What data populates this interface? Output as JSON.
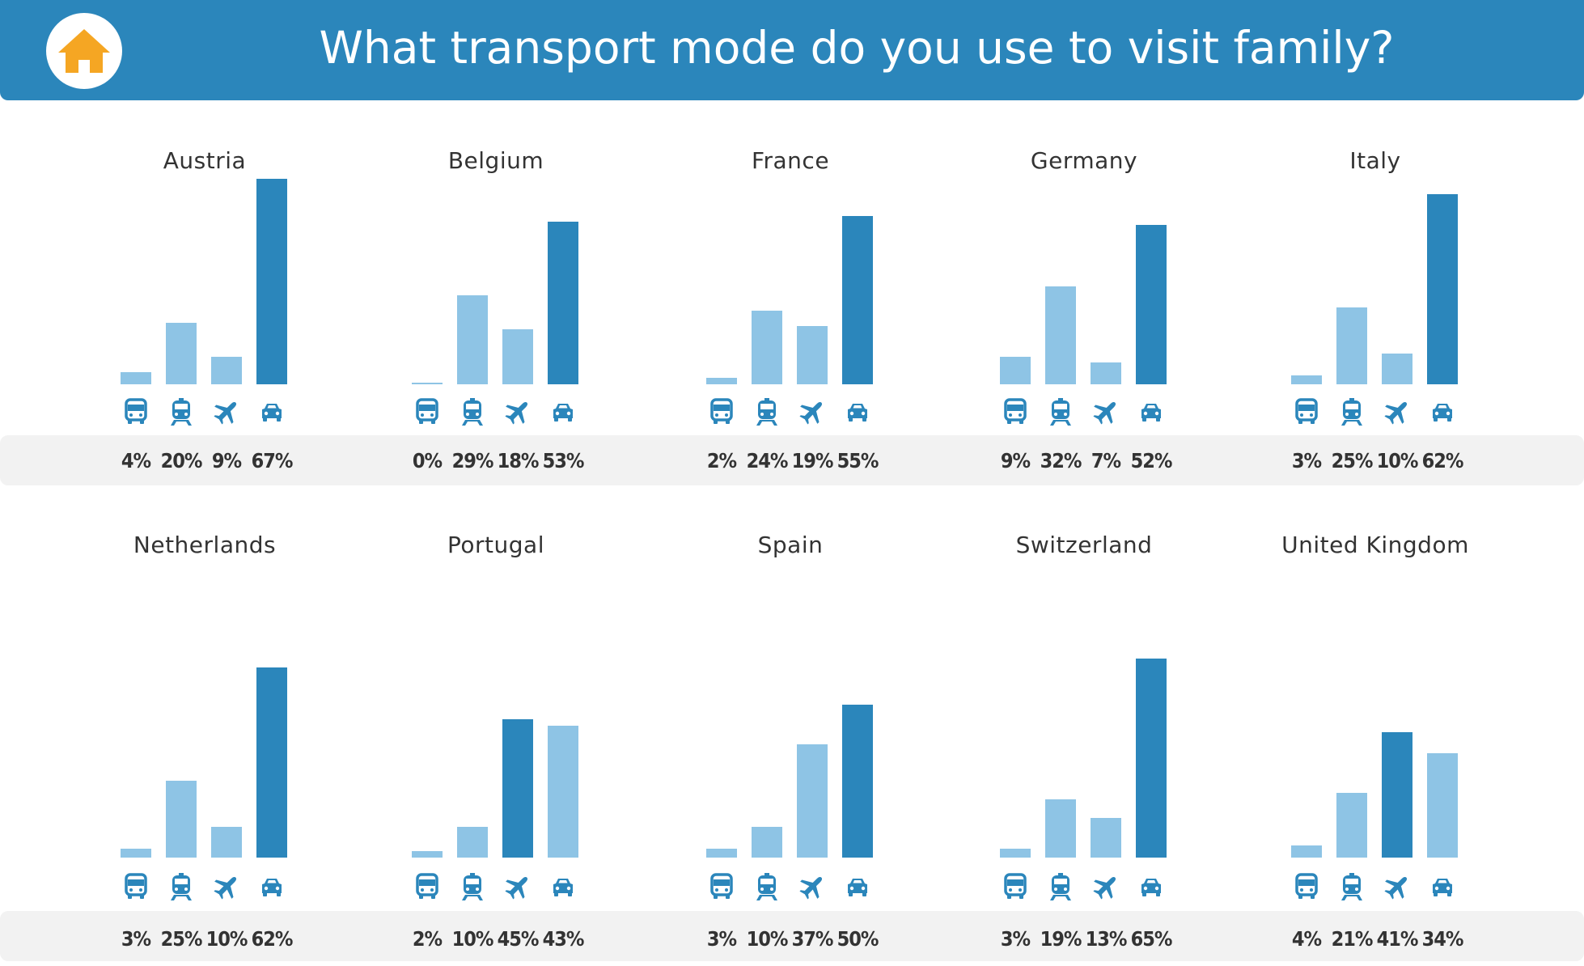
{
  "header": {
    "title": "What transport mode do you use to visit family?",
    "icon": "home-icon"
  },
  "colors": {
    "header": "#2b86bb",
    "bar_light": "#8ec4e5",
    "bar_dark": "#2b86bb",
    "icon": "#2b86bb",
    "home_icon": "#f5a623",
    "band": "#f2f2f2"
  },
  "chart_data": {
    "type": "bar",
    "title": "What transport mode do you use to visit family?",
    "categories": [
      "bus-icon",
      "train-icon",
      "plane-icon",
      "car-icon"
    ],
    "value_unit": "%",
    "charts": [
      {
        "country": "Austria",
        "values": [
          4,
          20,
          9,
          67
        ],
        "labels": [
          "4%",
          "20%",
          "9%",
          "67%"
        ]
      },
      {
        "country": "Belgium",
        "values": [
          0,
          29,
          18,
          53
        ],
        "labels": [
          "0%",
          "29%",
          "18%",
          "53%"
        ]
      },
      {
        "country": "France",
        "values": [
          2,
          24,
          19,
          55
        ],
        "labels": [
          "2%",
          "24%",
          "19%",
          "55%"
        ]
      },
      {
        "country": "Germany",
        "values": [
          9,
          32,
          7,
          52
        ],
        "labels": [
          "9%",
          "32%",
          "7%",
          "52%"
        ]
      },
      {
        "country": "Italy",
        "values": [
          3,
          25,
          10,
          62
        ],
        "labels": [
          "3%",
          "25%",
          "10%",
          "62%"
        ]
      },
      {
        "country": "Netherlands",
        "values": [
          3,
          25,
          10,
          62
        ],
        "labels": [
          "3%",
          "25%",
          "10%",
          "62%"
        ]
      },
      {
        "country": "Portugal",
        "values": [
          2,
          10,
          45,
          43
        ],
        "labels": [
          "2%",
          "10%",
          "45%",
          "43%"
        ]
      },
      {
        "country": "Spain",
        "values": [
          3,
          10,
          37,
          50
        ],
        "labels": [
          "3%",
          "10%",
          "37%",
          "50%"
        ]
      },
      {
        "country": "Switzerland",
        "values": [
          3,
          19,
          13,
          65
        ],
        "labels": [
          "3%",
          "19%",
          "13%",
          "65%"
        ]
      },
      {
        "country": "United Kingdom",
        "values": [
          4,
          21,
          41,
          34
        ],
        "labels": [
          "4%",
          "21%",
          "41%",
          "34%"
        ]
      }
    ]
  }
}
